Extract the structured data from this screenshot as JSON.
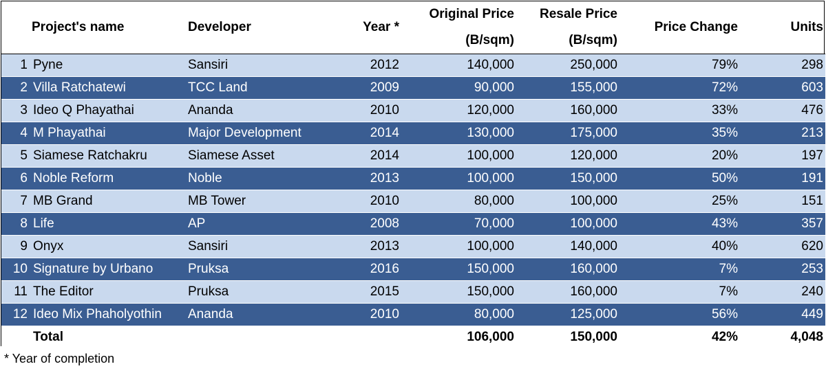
{
  "chart_data": {
    "type": "table",
    "columns": [
      "",
      "Project's name",
      "Developer",
      "Year *",
      "Original Price (B/sqm)",
      "Resale Price (B/sqm)",
      "Price Change",
      "Units"
    ],
    "header": {
      "name": "Project's name",
      "developer": "Developer",
      "year": "Year *",
      "orig_line1": "Original Price",
      "orig_line2": "(B/sqm)",
      "resale_line1": "Resale Price",
      "resale_line2": "(B/sqm)",
      "change": "Price Change",
      "units": "Units"
    },
    "rows": [
      {
        "num": "1",
        "name": "Pyne",
        "developer": "Sansiri",
        "year": "2012",
        "original": "140,000",
        "resale": "250,000",
        "change": "79%",
        "units": "298"
      },
      {
        "num": "2",
        "name": "Villa Ratchatewi",
        "developer": "TCC Land",
        "year": "2009",
        "original": "90,000",
        "resale": "155,000",
        "change": "72%",
        "units": "603"
      },
      {
        "num": "3",
        "name": "Ideo Q Phayathai",
        "developer": "Ananda",
        "year": "2010",
        "original": "120,000",
        "resale": "160,000",
        "change": "33%",
        "units": "476"
      },
      {
        "num": "4",
        "name": "M Phayathai",
        "developer": "Major Development",
        "year": "2014",
        "original": "130,000",
        "resale": "175,000",
        "change": "35%",
        "units": "213"
      },
      {
        "num": "5",
        "name": "Siamese Ratchakru",
        "developer": "Siamese Asset",
        "year": "2014",
        "original": "100,000",
        "resale": "120,000",
        "change": "20%",
        "units": "197"
      },
      {
        "num": "6",
        "name": "Noble Reform",
        "developer": "Noble",
        "year": "2013",
        "original": "100,000",
        "resale": "150,000",
        "change": "50%",
        "units": "191"
      },
      {
        "num": "7",
        "name": "MB Grand",
        "developer": "MB Tower",
        "year": "2010",
        "original": "80,000",
        "resale": "100,000",
        "change": "25%",
        "units": "151"
      },
      {
        "num": "8",
        "name": "Life",
        "developer": "AP",
        "year": "2008",
        "original": "70,000",
        "resale": "100,000",
        "change": "43%",
        "units": "357"
      },
      {
        "num": "9",
        "name": "Onyx",
        "developer": "Sansiri",
        "year": "2013",
        "original": "100,000",
        "resale": "140,000",
        "change": "40%",
        "units": "620"
      },
      {
        "num": "10",
        "name": "Signature by Urbano",
        "developer": "Pruksa",
        "year": "2016",
        "original": "150,000",
        "resale": "160,000",
        "change": "7%",
        "units": "253"
      },
      {
        "num": "11",
        "name": "The Editor",
        "developer": "Pruksa",
        "year": "2015",
        "original": "150,000",
        "resale": "160,000",
        "change": "7%",
        "units": "240"
      },
      {
        "num": "12",
        "name": "Ideo Mix Phaholyothin",
        "developer": "Ananda",
        "year": "2010",
        "original": "80,000",
        "resale": "125,000",
        "change": "56%",
        "units": "449"
      }
    ],
    "total": {
      "label": "Total",
      "original": "106,000",
      "resale": "150,000",
      "change": "42%",
      "units": "4,048"
    },
    "footnote": "* Year of completion",
    "colors": {
      "light_row": "#c9d9ee",
      "dark_row": "#3a5d92",
      "dark_row_text": "#ffffff"
    }
  }
}
